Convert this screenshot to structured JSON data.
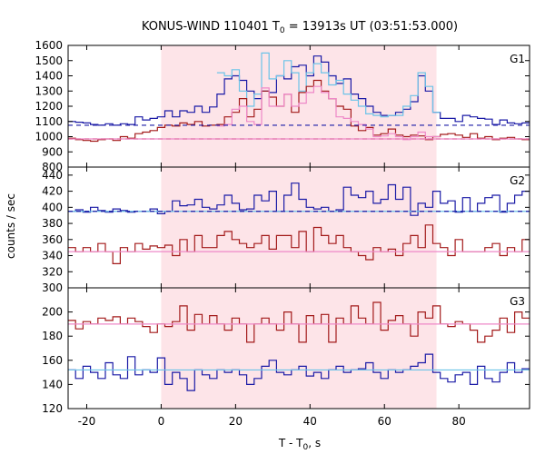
{
  "title": {
    "main": "KONUS-WIND 110401 T",
    "sub": "0",
    "rest": " = 13913s UT (03:51:53.000)"
  },
  "ylabel": "counts / sec",
  "xlabel": {
    "main": "T - T",
    "sub": "0",
    "rest": ", s"
  },
  "colors": {
    "blue": "#1a1aa6",
    "lightblue": "#6cc3e8",
    "darkred": "#a31a1a",
    "pink": "#ee88c8",
    "shade": "#fde4e8"
  },
  "chart_data": {
    "type": "line",
    "x_range": [
      -25,
      99
    ],
    "x_ticks": [
      -20,
      0,
      20,
      40,
      60,
      80
    ],
    "highlight_interval": [
      0,
      74
    ],
    "step": 2,
    "panels": [
      {
        "label": "G1",
        "ylim": [
          800,
          1600
        ],
        "y_ticks": [
          800,
          900,
          1000,
          1100,
          1200,
          1300,
          1400,
          1500,
          1600
        ],
        "x_start": -25,
        "series": [
          {
            "color": "blue",
            "kind": "step",
            "values": [
              1100,
              1095,
              1090,
              1080,
              1075,
              1085,
              1075,
              1085,
              1080,
              1130,
              1110,
              1120,
              1130,
              1170,
              1130,
              1170,
              1160,
              1200,
              1160,
              1195,
              1280,
              1380,
              1400,
              1370,
              1300,
              1250,
              1300,
              1290,
              1400,
              1380,
              1460,
              1470,
              1400,
              1530,
              1490,
              1400,
              1350,
              1380,
              1280,
              1250,
              1200,
              1160,
              1140,
              1140,
              1160,
              1180,
              1230,
              1400,
              1300,
              1160,
              1120,
              1120,
              1100,
              1140,
              1130,
              1120,
              1115,
              1080,
              1110,
              1090,
              1085,
              1090
            ]
          },
          {
            "color": "lightblue",
            "kind": "step",
            "values": [
              null,
              null,
              null,
              null,
              null,
              null,
              null,
              null,
              null,
              null,
              null,
              null,
              null,
              null,
              null,
              null,
              null,
              null,
              null,
              null,
              1420,
              1400,
              1440,
              1300,
              1200,
              1280,
              1550,
              1380,
              1400,
              1500,
              1420,
              1300,
              1420,
              1480,
              1420,
              1340,
              1370,
              1280,
              1240,
              1200,
              1150,
              1140,
              1130,
              1140,
              1140,
              1200,
              1270,
              1420,
              1330,
              1160,
              null,
              null,
              null,
              null,
              null,
              null,
              null,
              null,
              null,
              null,
              null,
              null
            ]
          },
          {
            "color": "darkred",
            "kind": "step",
            "values": [
              990,
              980,
              975,
              970,
              980,
              985,
              975,
              1000,
              990,
              1020,
              1030,
              1040,
              1060,
              1075,
              1070,
              1090,
              1080,
              1100,
              1070,
              1075,
              1080,
              1130,
              1160,
              1250,
              1130,
              1180,
              1300,
              1260,
              1200,
              1280,
              1160,
              1290,
              1330,
              1370,
              1300,
              1250,
              1200,
              1180,
              1070,
              1040,
              1060,
              1010,
              1020,
              1050,
              1010,
              1000,
              1010,
              1005,
              980,
              1000,
              1015,
              1020,
              1010,
              995,
              1020,
              990,
              1000,
              980,
              990,
              995,
              985,
              980
            ]
          },
          {
            "color": "pink",
            "kind": "step",
            "values": [
              null,
              null,
              null,
              null,
              null,
              null,
              null,
              null,
              null,
              null,
              null,
              null,
              null,
              null,
              null,
              null,
              null,
              null,
              null,
              null,
              1070,
              1080,
              1180,
              1200,
              1100,
              1080,
              1320,
              1200,
              1200,
              1280,
              1200,
              1220,
              1290,
              1330,
              1290,
              1250,
              1130,
              1120,
              1100,
              1080,
              1050,
              1000,
              1005,
              1020,
              1000,
              980,
              1000,
              1030,
              1000,
              1000,
              null,
              null,
              null,
              null,
              null,
              null,
              null,
              null,
              null,
              null,
              null,
              null
            ]
          },
          {
            "color": "blue",
            "kind": "hline",
            "y": 1075,
            "dashed": true
          },
          {
            "color": "darkred",
            "kind": "hline",
            "y": 985,
            "dashed": true
          },
          {
            "color": "pink",
            "kind": "hline",
            "y": 985,
            "dashed": false
          }
        ]
      },
      {
        "label": "G2",
        "ylim": [
          300,
          450
        ],
        "y_ticks": [
          300,
          320,
          340,
          360,
          380,
          400,
          420,
          440
        ],
        "x_start": -25,
        "series": [
          {
            "color": "blue",
            "kind": "step",
            "values": [
              395,
              397,
              394,
              400,
              396,
              394,
              398,
              396,
              394,
              395,
              395,
              398,
              392,
              395,
              408,
              402,
              403,
              410,
              400,
              398,
              403,
              415,
              405,
              397,
              398,
              415,
              408,
              420,
              395,
              415,
              430,
              410,
              400,
              398,
              400,
              395,
              397,
              425,
              415,
              412,
              420,
              405,
              410,
              428,
              410,
              425,
              390,
              405,
              400,
              420,
              405,
              408,
              394,
              412,
              395,
              405,
              412,
              415,
              394,
              405,
              415,
              420
            ]
          },
          {
            "color": "lightblue",
            "kind": "hline",
            "y": 395,
            "dashed": false
          },
          {
            "color": "blue",
            "kind": "hline",
            "y": 395,
            "dashed": true
          },
          {
            "color": "darkred",
            "kind": "step",
            "values": [
              350,
              345,
              350,
              345,
              355,
              345,
              330,
              350,
              345,
              355,
              348,
              352,
              350,
              353,
              340,
              360,
              345,
              365,
              350,
              350,
              365,
              370,
              360,
              355,
              350,
              355,
              365,
              348,
              365,
              365,
              350,
              370,
              345,
              375,
              365,
              355,
              365,
              350,
              345,
              340,
              335,
              350,
              345,
              348,
              340,
              355,
              365,
              350,
              378,
              355,
              350,
              340,
              360,
              345,
              345,
              345,
              350,
              355,
              340,
              350,
              345,
              360
            ]
          },
          {
            "color": "pink",
            "kind": "hline",
            "y": 345,
            "dashed": false
          }
        ]
      },
      {
        "label": "G3",
        "ylim": [
          120,
          220
        ],
        "y_ticks": [
          120,
          140,
          160,
          180,
          200
        ],
        "x_start": -25,
        "series": [
          {
            "color": "darkred",
            "kind": "step",
            "values": [
              193,
              186,
              192,
              190,
              195,
              193,
              196,
              190,
              195,
              192,
              188,
              183,
              190,
              188,
              192,
              205,
              185,
              198,
              190,
              197,
              190,
              185,
              195,
              190,
              175,
              190,
              195,
              190,
              185,
              200,
              190,
              175,
              197,
              190,
              198,
              175,
              195,
              190,
              205,
              195,
              190,
              208,
              185,
              193,
              197,
              190,
              180,
              200,
              195,
              205,
              190,
              188,
              192,
              190,
              185,
              175,
              180,
              185,
              195,
              183,
              200,
              195
            ]
          },
          {
            "color": "pink",
            "kind": "hline",
            "y": 190,
            "dashed": false
          },
          {
            "color": "blue",
            "kind": "step",
            "values": [
              152,
              145,
              155,
              150,
              145,
              158,
              148,
              145,
              163,
              148,
              152,
              150,
              162,
              140,
              150,
              145,
              135,
              152,
              148,
              145,
              152,
              150,
              152,
              148,
              140,
              145,
              155,
              160,
              150,
              148,
              152,
              155,
              147,
              150,
              145,
              152,
              155,
              150,
              152,
              153,
              158,
              150,
              145,
              152,
              150,
              152,
              155,
              158,
              165,
              150,
              145,
              142,
              148,
              150,
              140,
              155,
              145,
              142,
              150,
              158,
              150,
              153
            ]
          },
          {
            "color": "lightblue",
            "kind": "hline",
            "y": 152,
            "dashed": false
          }
        ]
      }
    ]
  }
}
